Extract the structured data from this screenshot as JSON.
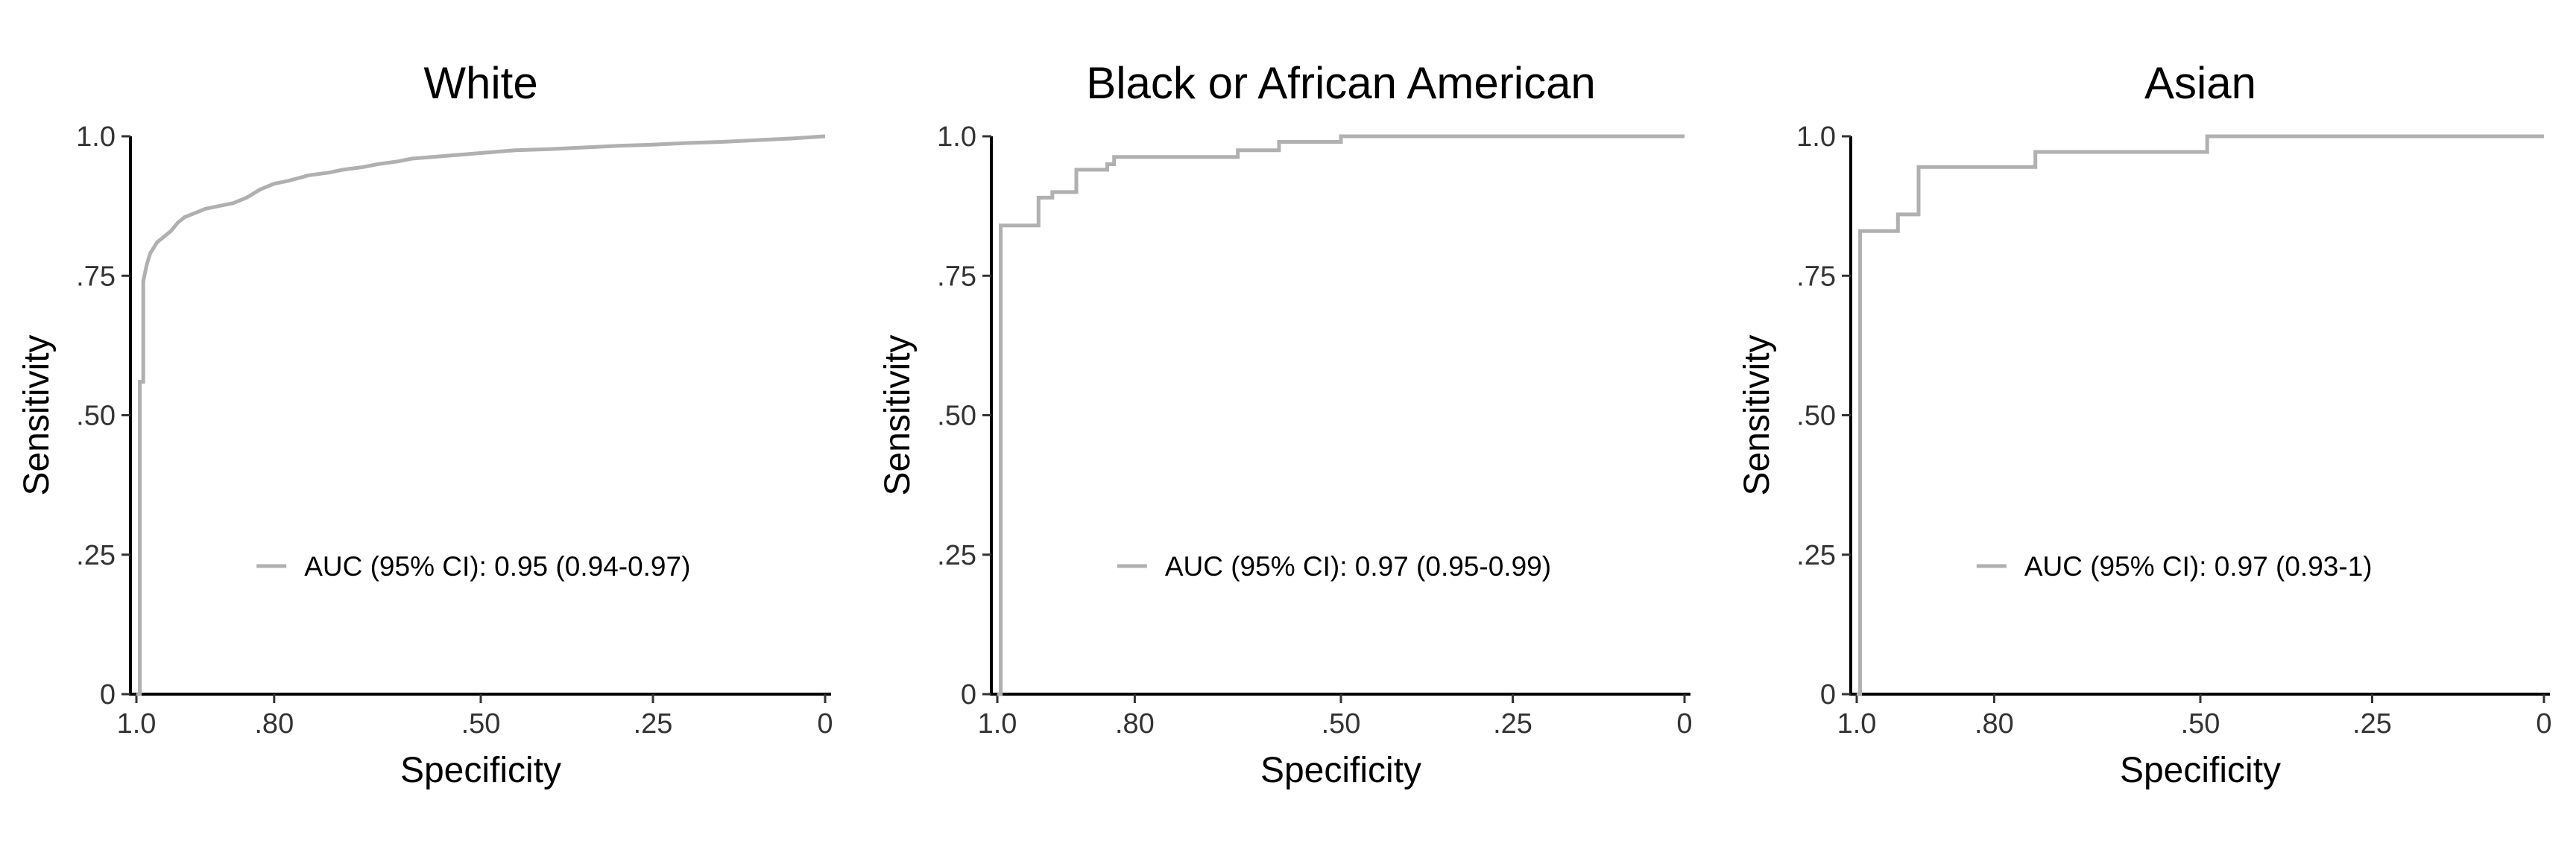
{
  "chart_data": [
    {
      "type": "line",
      "title": "White",
      "xlabel": "Specificity",
      "ylabel": "Sensitivity",
      "xlim": [
        1.0,
        0
      ],
      "ylim": [
        0,
        1.0
      ],
      "x_reversed": true,
      "grid": false,
      "x_ticks": [
        {
          "value": 1.0,
          "label": "1.0"
        },
        {
          "value": 0.8,
          "label": ".80"
        },
        {
          "value": 0.5,
          "label": ".50"
        },
        {
          "value": 0.25,
          "label": ".25"
        },
        {
          "value": 0.0,
          "label": "0"
        }
      ],
      "y_ticks": [
        {
          "value": 0.0,
          "label": "0"
        },
        {
          "value": 0.25,
          "label": ".25"
        },
        {
          "value": 0.5,
          "label": ".50"
        },
        {
          "value": 0.75,
          "label": ".75"
        },
        {
          "value": 1.0,
          "label": "1.0"
        }
      ],
      "legend_position": "center-bottom",
      "series": [
        {
          "name": "AUC (95% CI): 0.95 (0.94-0.97)",
          "color": "#b0b0b0",
          "specificity": [
            1.0,
            0.995,
            0.995,
            0.99,
            0.99,
            0.985,
            0.98,
            0.97,
            0.96,
            0.95,
            0.94,
            0.93,
            0.92,
            0.9,
            0.88,
            0.86,
            0.84,
            0.82,
            0.8,
            0.78,
            0.75,
            0.72,
            0.7,
            0.67,
            0.65,
            0.62,
            0.6,
            0.55,
            0.5,
            0.45,
            0.4,
            0.35,
            0.3,
            0.25,
            0.2,
            0.15,
            0.1,
            0.05,
            0.0
          ],
          "sensitivity": [
            0.0,
            0.0,
            0.56,
            0.56,
            0.74,
            0.77,
            0.79,
            0.81,
            0.82,
            0.83,
            0.845,
            0.855,
            0.86,
            0.87,
            0.875,
            0.88,
            0.89,
            0.905,
            0.915,
            0.92,
            0.93,
            0.935,
            0.94,
            0.945,
            0.95,
            0.955,
            0.96,
            0.965,
            0.97,
            0.975,
            0.977,
            0.98,
            0.983,
            0.985,
            0.988,
            0.99,
            0.993,
            0.996,
            1.0
          ]
        }
      ]
    },
    {
      "type": "line",
      "title": "Black or African American",
      "xlabel": "Specificity",
      "ylabel": "Sensitivity",
      "xlim": [
        1.0,
        0
      ],
      "ylim": [
        0,
        1.0
      ],
      "x_reversed": true,
      "grid": false,
      "x_ticks": [
        {
          "value": 1.0,
          "label": "1.0"
        },
        {
          "value": 0.8,
          "label": ".80"
        },
        {
          "value": 0.5,
          "label": ".50"
        },
        {
          "value": 0.25,
          "label": ".25"
        },
        {
          "value": 0.0,
          "label": "0"
        }
      ],
      "y_ticks": [
        {
          "value": 0.0,
          "label": "0"
        },
        {
          "value": 0.25,
          "label": ".25"
        },
        {
          "value": 0.5,
          "label": ".50"
        },
        {
          "value": 0.75,
          "label": ".75"
        },
        {
          "value": 1.0,
          "label": "1.0"
        }
      ],
      "legend_position": "center-bottom",
      "series": [
        {
          "name": "AUC (95% CI): 0.97 (0.95-0.99)",
          "color": "#b0b0b0",
          "specificity": [
            1.0,
            0.995,
            0.995,
            0.94,
            0.94,
            0.92,
            0.92,
            0.885,
            0.885,
            0.84,
            0.84,
            0.83,
            0.83,
            0.65,
            0.65,
            0.59,
            0.59,
            0.5,
            0.5,
            0.0
          ],
          "sensitivity": [
            0.0,
            0.0,
            0.84,
            0.84,
            0.89,
            0.89,
            0.9,
            0.9,
            0.94,
            0.94,
            0.95,
            0.95,
            0.963,
            0.963,
            0.975,
            0.975,
            0.99,
            0.99,
            1.0,
            1.0
          ]
        }
      ]
    },
    {
      "type": "line",
      "title": "Asian",
      "xlabel": "Specificity",
      "ylabel": "Sensitivity",
      "xlim": [
        1.0,
        0
      ],
      "ylim": [
        0,
        1.0
      ],
      "x_reversed": true,
      "grid": false,
      "x_ticks": [
        {
          "value": 1.0,
          "label": "1.0"
        },
        {
          "value": 0.8,
          "label": ".80"
        },
        {
          "value": 0.5,
          "label": ".50"
        },
        {
          "value": 0.25,
          "label": ".25"
        },
        {
          "value": 0.0,
          "label": "0"
        }
      ],
      "y_ticks": [
        {
          "value": 0.0,
          "label": "0"
        },
        {
          "value": 0.25,
          "label": ".25"
        },
        {
          "value": 0.5,
          "label": ".50"
        },
        {
          "value": 0.75,
          "label": ".75"
        },
        {
          "value": 1.0,
          "label": "1.0"
        }
      ],
      "legend_position": "center-bottom",
      "series": [
        {
          "name": "AUC (95% CI): 0.97 (0.93-1)",
          "color": "#b0b0b0",
          "specificity": [
            1.0,
            0.995,
            0.995,
            0.94,
            0.94,
            0.91,
            0.91,
            0.74,
            0.74,
            0.49,
            0.49,
            0.0
          ],
          "sensitivity": [
            0.0,
            0.0,
            0.83,
            0.83,
            0.86,
            0.86,
            0.945,
            0.945,
            0.972,
            0.972,
            1.0,
            1.0
          ]
        }
      ]
    }
  ]
}
